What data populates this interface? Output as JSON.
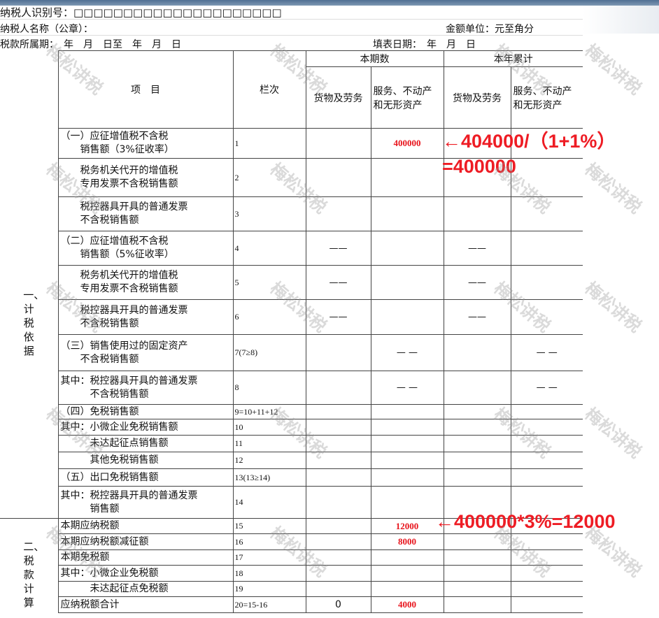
{
  "header": {
    "taxpayer_id_label": "纳税人识别号：□□□□□□□□□□□□□□□□□□□□□",
    "taxpayer_name_label": "纳税人名称（公章）：",
    "amount_unit": "金额单位：元至角分",
    "tax_period": "税款所属期：　年　月　日至　年　月　日",
    "fill_date": "填表日期：　年　月　日"
  },
  "table": {
    "col_item": "项　目",
    "col_num": "栏次",
    "current": "本期数",
    "ytd": "本年累计",
    "goods": "货物及劳务",
    "services": "服务、不动产和无形资产",
    "section1": "一、计税依据",
    "section2": "二、税款计算",
    "rows": [
      {
        "item": "（一）应征增值税不含税\n　　销售额（3%征收率）",
        "num": "1",
        "goods": "",
        "services": "400000",
        "ytd_goods": "",
        "ytd_services": ""
      },
      {
        "item": "　　税务机关代开的增值税\n　　专用发票不含税销售额",
        "num": "2",
        "goods": "",
        "services": "",
        "ytd_goods": "",
        "ytd_services": ""
      },
      {
        "item": "　　税控器具开具的普通发票\n　　不含税销售额",
        "num": "3",
        "goods": "",
        "services": "",
        "ytd_goods": "",
        "ytd_services": ""
      },
      {
        "item": "（二）应征增值税不含税\n　　销售额（5%征收率）",
        "num": "4",
        "goods": "——",
        "services": "",
        "ytd_goods": "——",
        "ytd_services": ""
      },
      {
        "item": "　　税务机关代开的增值税\n　　专用发票不含税销售额",
        "num": "5",
        "goods": "——",
        "services": "",
        "ytd_goods": "——",
        "ytd_services": ""
      },
      {
        "item": "　　税控器具开具的普通发票\n　　不含税销售额",
        "num": "6",
        "goods": "——",
        "services": "",
        "ytd_goods": "——",
        "ytd_services": ""
      },
      {
        "item": "（三）销售使用过的固定资产\n　　不含税销售额",
        "num": "7(7≥8)",
        "goods": "",
        "services": "— —",
        "ytd_goods": "",
        "ytd_services": "— —"
      },
      {
        "item": "其中：税控器具开具的普通发票\n　　　不含税销售额",
        "num": "8",
        "goods": "",
        "services": "— —",
        "ytd_goods": "",
        "ytd_services": "— —"
      },
      {
        "item": "（四）免税销售额",
        "num": "9=10+11+12",
        "goods": "",
        "services": "",
        "ytd_goods": "",
        "ytd_services": ""
      },
      {
        "item": "其中：小微企业免税销售额",
        "num": "10",
        "goods": "",
        "services": "",
        "ytd_goods": "",
        "ytd_services": ""
      },
      {
        "item": "　　　未达起征点销售额",
        "num": "11",
        "goods": "",
        "services": "",
        "ytd_goods": "",
        "ytd_services": ""
      },
      {
        "item": "　　　其他免税销售额",
        "num": "12",
        "goods": "",
        "services": "",
        "ytd_goods": "",
        "ytd_services": ""
      },
      {
        "item": "（五）出口免税销售额",
        "num": "13(13≥14)",
        "goods": "",
        "services": "",
        "ytd_goods": "",
        "ytd_services": ""
      },
      {
        "item": "其中：税控器具开具的普通发票\n　　　销售额",
        "num": "14",
        "goods": "",
        "services": "",
        "ytd_goods": "",
        "ytd_services": ""
      },
      {
        "item": "本期应纳税额",
        "num": "15",
        "goods": "",
        "services": "12000",
        "ytd_goods": "",
        "ytd_services": ""
      },
      {
        "item": "本期应纳税额减征额",
        "num": "16",
        "goods": "",
        "services": "8000",
        "ytd_goods": "",
        "ytd_services": ""
      },
      {
        "item": "本期免税额",
        "num": "17",
        "goods": "",
        "services": "",
        "ytd_goods": "",
        "ytd_services": ""
      },
      {
        "item": "其中：小微企业免税额",
        "num": "18",
        "goods": "",
        "services": "",
        "ytd_goods": "",
        "ytd_services": ""
      },
      {
        "item": "　　　未达起征点免税额",
        "num": "19",
        "goods": "",
        "services": "",
        "ytd_goods": "",
        "ytd_services": ""
      },
      {
        "item": "应纳税额合计",
        "num": "20=15-16",
        "goods": "0",
        "services": "4000",
        "ytd_goods": "",
        "ytd_services": ""
      }
    ]
  },
  "annotations": {
    "note1_line1": "←404000/（1+1%）",
    "note1_line2": "=400000",
    "note2": "←400000*3%=12000"
  },
  "watermark": "梅松讲税",
  "colors": {
    "annotation": "#ee1c24",
    "header_bar": "#4f6f93"
  }
}
